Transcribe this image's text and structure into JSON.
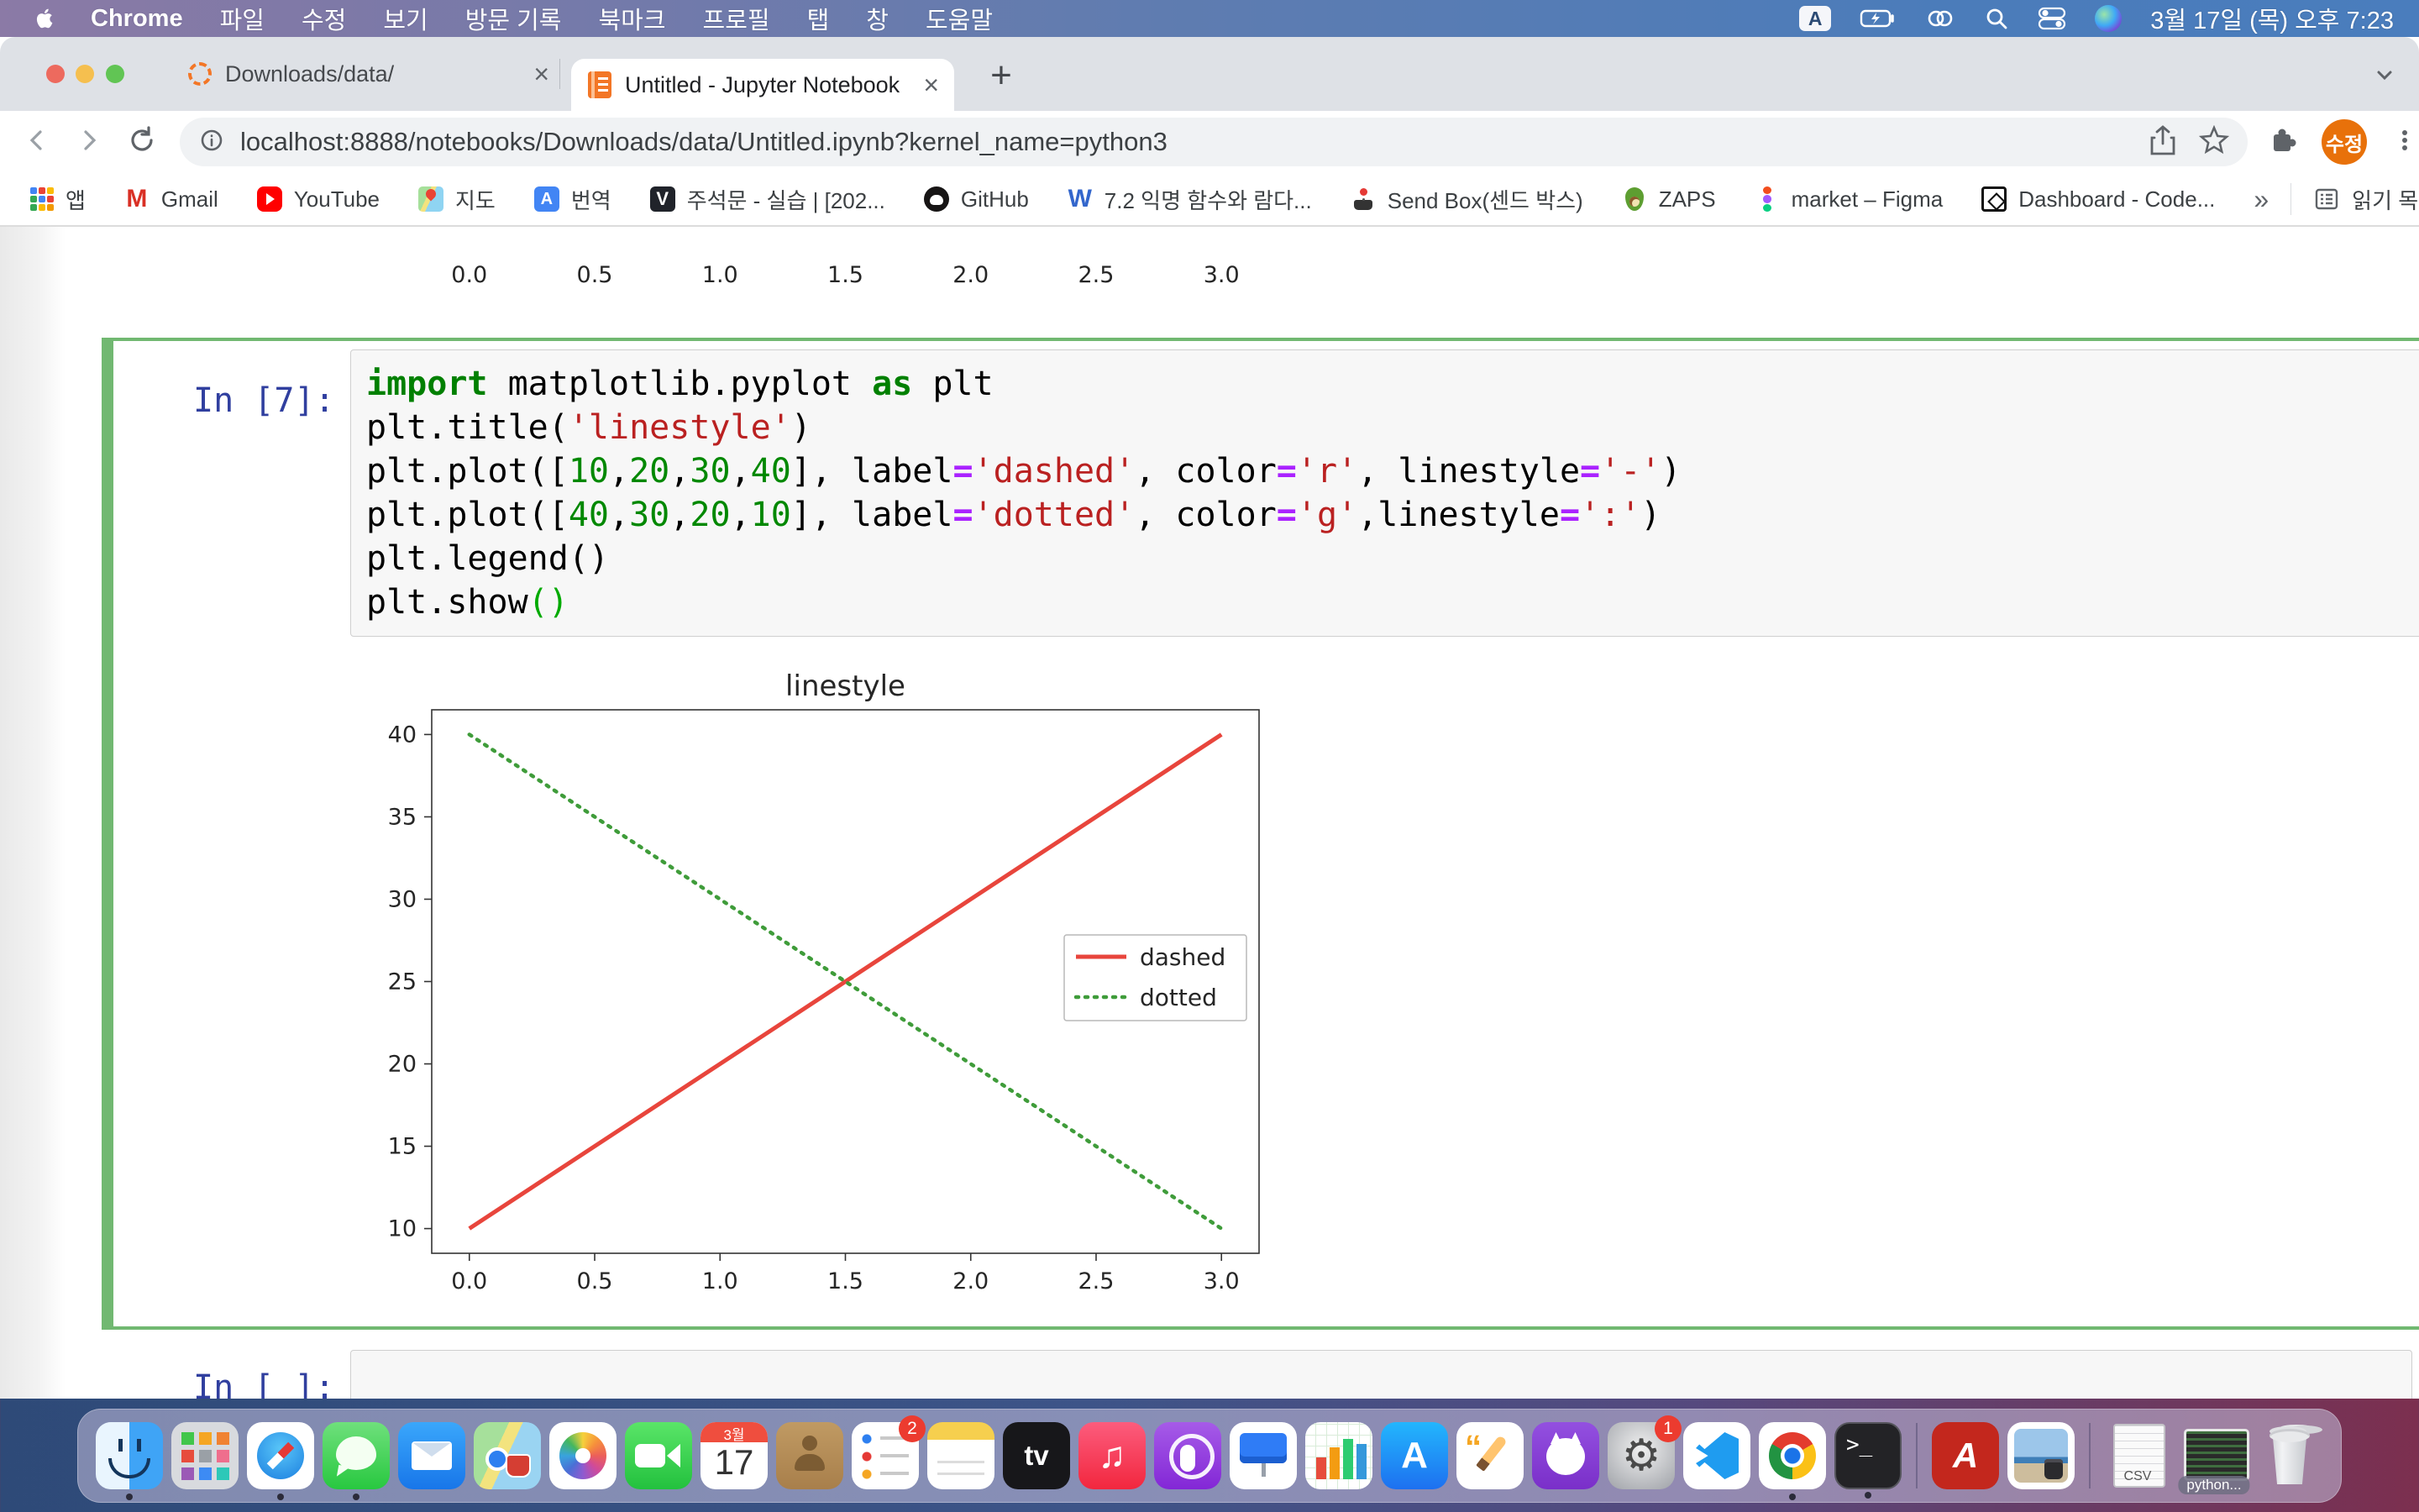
{
  "menu_bar": {
    "items": [
      {
        "label": "Chrome",
        "bold": true
      },
      {
        "label": "파일"
      },
      {
        "label": "수정"
      },
      {
        "label": "보기"
      },
      {
        "label": "방문 기록"
      },
      {
        "label": "북마크"
      },
      {
        "label": "프로필"
      },
      {
        "label": "탭"
      },
      {
        "label": "창"
      },
      {
        "label": "도움말"
      }
    ],
    "status": {
      "input_badge": "A",
      "clock": "3월 17일 (목) 오후 7:23"
    }
  },
  "browser": {
    "tabs": [
      {
        "title": "Downloads/data/",
        "active": false
      },
      {
        "title": "Untitled - Jupyter Notebook",
        "active": true
      }
    ],
    "address": {
      "url": "localhost:8888/notebooks/Downloads/data/Untitled.ipynb?kernel_name=python3"
    },
    "profile_badge": "수정",
    "bookmarks": [
      {
        "label": "앱",
        "icon": "apps-grid"
      },
      {
        "label": "Gmail",
        "icon": "gmail"
      },
      {
        "label": "YouTube",
        "icon": "youtube"
      },
      {
        "label": "지도",
        "icon": "maps"
      },
      {
        "label": "번역",
        "icon": "translate"
      },
      {
        "label": "주석문 - 실습 | [202...",
        "icon": "velog"
      },
      {
        "label": "GitHub",
        "icon": "github"
      },
      {
        "label": "7.2 익명 함수와 람다...",
        "icon": "wikidocs"
      },
      {
        "label": "Send Box(센드 박스)",
        "icon": "joystick"
      },
      {
        "label": "ZAPS",
        "icon": "avocado"
      },
      {
        "label": "market – Figma",
        "icon": "figma"
      },
      {
        "label": "Dashboard - Code...",
        "icon": "codesandbox"
      }
    ],
    "bookmarks_overflow": "»",
    "reading_list": "읽기 목록"
  },
  "notebook": {
    "active_cell": {
      "prompt": "In [7]:",
      "code_lines": [
        [
          [
            "import",
            "kw"
          ],
          [
            " matplotlib.pyplot ",
            "pl"
          ],
          [
            "as",
            "kw"
          ],
          [
            " plt",
            "pl"
          ]
        ],
        [
          [
            "plt.title(",
            "pl"
          ],
          [
            "'linestyle'",
            "st"
          ],
          [
            ")",
            "pl"
          ]
        ],
        [
          [
            "plt.plot([",
            "pl"
          ],
          [
            "10",
            "nu"
          ],
          [
            ",",
            "pl"
          ],
          [
            "20",
            "nu"
          ],
          [
            ",",
            "pl"
          ],
          [
            "30",
            "nu"
          ],
          [
            ",",
            "pl"
          ],
          [
            "40",
            "nu"
          ],
          [
            "], label",
            "pl"
          ],
          [
            "=",
            "op"
          ],
          [
            "'dashed'",
            "st"
          ],
          [
            ", color",
            "pl"
          ],
          [
            "=",
            "op"
          ],
          [
            "'r'",
            "st"
          ],
          [
            ", linestyle",
            "pl"
          ],
          [
            "=",
            "op"
          ],
          [
            "'-'",
            "st"
          ],
          [
            ")",
            "pl"
          ]
        ],
        [
          [
            "plt.plot([",
            "pl"
          ],
          [
            "40",
            "nu"
          ],
          [
            ",",
            "pl"
          ],
          [
            "30",
            "nu"
          ],
          [
            ",",
            "pl"
          ],
          [
            "20",
            "nu"
          ],
          [
            ",",
            "pl"
          ],
          [
            "10",
            "nu"
          ],
          [
            "], label",
            "pl"
          ],
          [
            "=",
            "op"
          ],
          [
            "'dotted'",
            "st"
          ],
          [
            ", color",
            "pl"
          ],
          [
            "=",
            "op"
          ],
          [
            "'g'",
            "st"
          ],
          [
            ",linestyle",
            "pl"
          ],
          [
            "=",
            "op"
          ],
          [
            "':'",
            "st"
          ],
          [
            ")",
            "pl"
          ]
        ],
        [
          [
            "plt.legend()",
            "pl"
          ]
        ],
        [
          [
            "plt.show",
            "pl"
          ],
          [
            "()",
            "br"
          ]
        ]
      ]
    },
    "empty_cell": {
      "prompt": "In [ ]:"
    }
  },
  "chart_data": {
    "type": "line",
    "title": "linestyle",
    "x": [
      0,
      1,
      2,
      3
    ],
    "series": [
      {
        "name": "dashed",
        "values": [
          10,
          20,
          30,
          40
        ],
        "color": "#e8453c",
        "linestyle": "solid"
      },
      {
        "name": "dotted",
        "values": [
          40,
          30,
          20,
          10
        ],
        "color": "#3f9c3a",
        "linestyle": "dotted"
      }
    ],
    "xticks": [
      {
        "v": 0,
        "l": "0.0"
      },
      {
        "v": 0.5,
        "l": "0.5"
      },
      {
        "v": 1,
        "l": "1.0"
      },
      {
        "v": 1.5,
        "l": "1.5"
      },
      {
        "v": 2,
        "l": "2.0"
      },
      {
        "v": 2.5,
        "l": "2.5"
      },
      {
        "v": 3,
        "l": "3.0"
      }
    ],
    "yticks": [
      {
        "v": 10,
        "l": "10"
      },
      {
        "v": 15,
        "l": "15"
      },
      {
        "v": 20,
        "l": "20"
      },
      {
        "v": 25,
        "l": "25"
      },
      {
        "v": 30,
        "l": "30"
      },
      {
        "v": 35,
        "l": "35"
      },
      {
        "v": 40,
        "l": "40"
      }
    ],
    "xlim": [
      -0.15,
      3.15
    ],
    "ylim": [
      8.5,
      41.5
    ],
    "legend_position": "center right",
    "grid": false
  },
  "dock": {
    "items": [
      {
        "id": "finder",
        "dot": true
      },
      {
        "id": "launchpad"
      },
      {
        "id": "safari",
        "dot": true
      },
      {
        "id": "messages",
        "dot": true
      },
      {
        "id": "mail"
      },
      {
        "id": "maps"
      },
      {
        "id": "photos"
      },
      {
        "id": "facetime"
      },
      {
        "id": "calendar",
        "month": "3월",
        "day": "17"
      },
      {
        "id": "contacts"
      },
      {
        "id": "reminders",
        "badge": "2"
      },
      {
        "id": "notes"
      },
      {
        "id": "appletv",
        "text": "tv"
      },
      {
        "id": "music"
      },
      {
        "id": "podcasts"
      },
      {
        "id": "keynote"
      },
      {
        "id": "numbers"
      },
      {
        "id": "appstore"
      },
      {
        "id": "pages"
      },
      {
        "id": "github"
      },
      {
        "id": "settings",
        "badge": "1"
      },
      {
        "id": "vscode"
      },
      {
        "id": "chrome",
        "dot": true
      },
      {
        "id": "terminal",
        "dot": true
      },
      {
        "id": "divider"
      },
      {
        "id": "acrobat"
      },
      {
        "id": "preview"
      },
      {
        "id": "divider"
      },
      {
        "id": "csv",
        "text": "CSV"
      },
      {
        "id": "python",
        "text": "python..."
      },
      {
        "id": "trash"
      }
    ]
  }
}
